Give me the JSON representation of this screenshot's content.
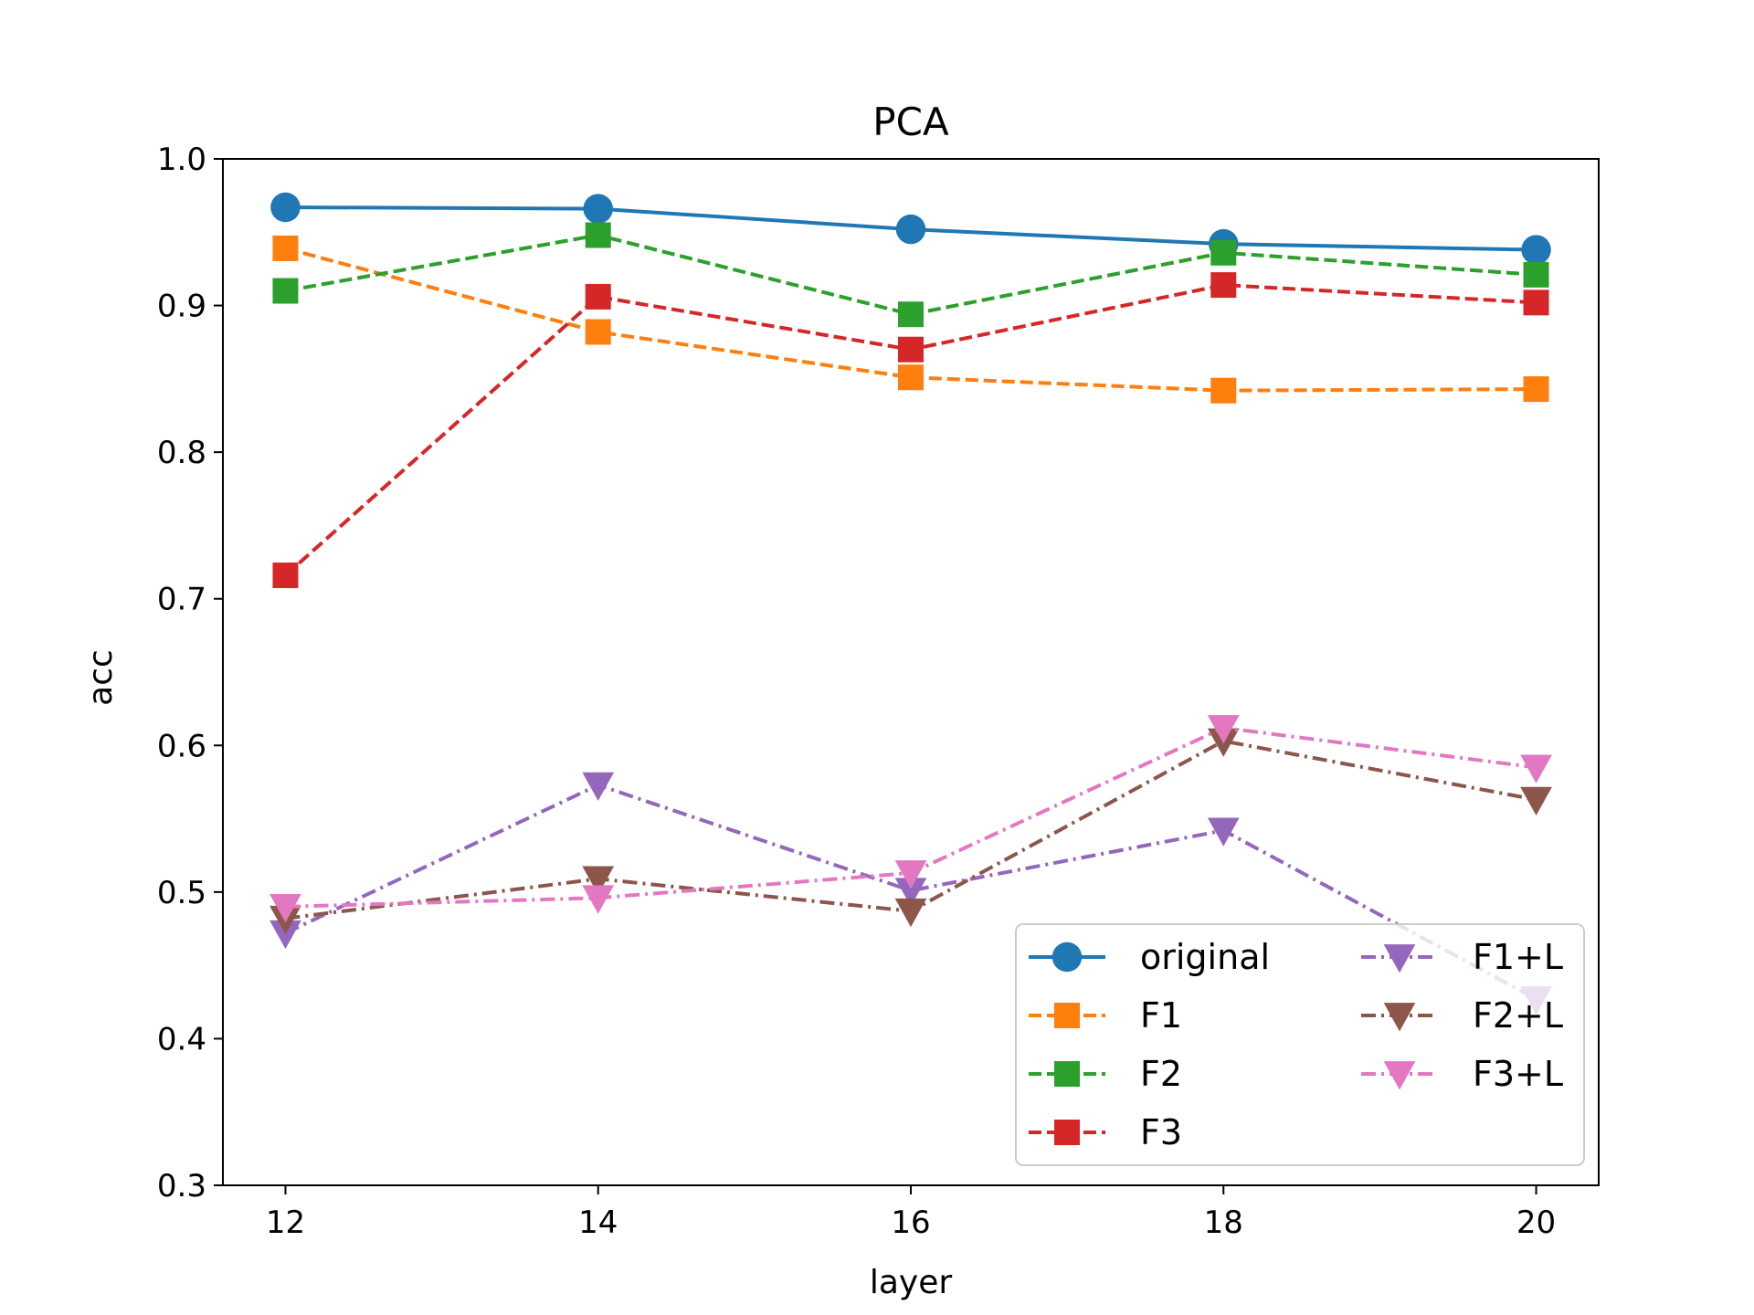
{
  "chart_data": {
    "type": "line",
    "title": "PCA",
    "xlabel": "layer",
    "ylabel": "acc",
    "x": [
      12,
      14,
      16,
      18,
      20
    ],
    "xticks": [
      "12",
      "14",
      "16",
      "18",
      "20"
    ],
    "yticks": [
      "0.3",
      "0.4",
      "0.5",
      "0.6",
      "0.7",
      "0.8",
      "0.9",
      "1.0"
    ],
    "xlim": [
      11.6,
      20.4
    ],
    "ylim": [
      0.3,
      1.0
    ],
    "grid": false,
    "legend_position": "lower-right",
    "legend_columns": 2,
    "series": [
      {
        "name": "original",
        "values": [
          0.967,
          0.966,
          0.952,
          0.942,
          0.938
        ],
        "color": "#1f77b4",
        "linestyle": "solid",
        "marker": "circle"
      },
      {
        "name": "F1",
        "values": [
          0.939,
          0.882,
          0.851,
          0.842,
          0.843
        ],
        "color": "#ff7f0e",
        "linestyle": "dashed",
        "marker": "square"
      },
      {
        "name": "F2",
        "values": [
          0.91,
          0.948,
          0.894,
          0.936,
          0.921
        ],
        "color": "#2ca02c",
        "linestyle": "dashed",
        "marker": "square"
      },
      {
        "name": "F3",
        "values": [
          0.716,
          0.906,
          0.87,
          0.914,
          0.902
        ],
        "color": "#d62728",
        "linestyle": "dashed",
        "marker": "square"
      },
      {
        "name": "F1+L",
        "values": [
          0.472,
          0.573,
          0.501,
          0.542,
          0.427
        ],
        "color": "#9467bd",
        "linestyle": "dashdot",
        "marker": "triangle-down"
      },
      {
        "name": "F2+L",
        "values": [
          0.482,
          0.509,
          0.487,
          0.603,
          0.563
        ],
        "color": "#8c564b",
        "linestyle": "dashdot",
        "marker": "triangle-down"
      },
      {
        "name": "F3+L",
        "values": [
          0.49,
          0.496,
          0.513,
          0.612,
          0.585
        ],
        "color": "#e377c2",
        "linestyle": "dashdot",
        "marker": "triangle-down"
      }
    ]
  }
}
